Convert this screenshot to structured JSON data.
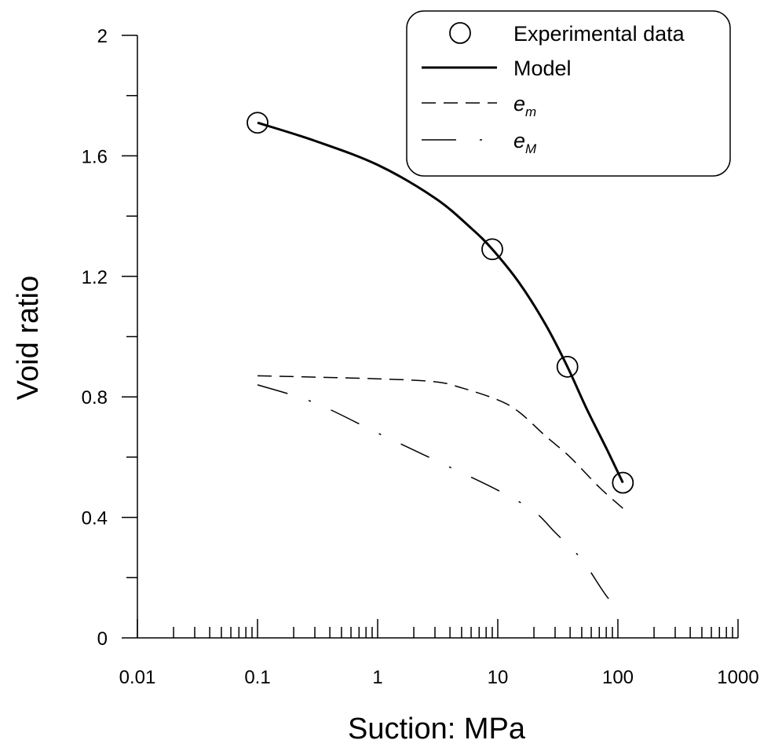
{
  "chart_data": {
    "type": "line",
    "xlabel": "Suction: MPa",
    "ylabel": "Void ratio",
    "x_scale": "log",
    "xlim": [
      0.01,
      1000
    ],
    "ylim": [
      0,
      2
    ],
    "x_ticks": [
      0.01,
      0.1,
      1,
      10,
      100,
      1000
    ],
    "x_tick_labels": [
      "0.01",
      "0.1",
      "1",
      "10",
      "100",
      "1000"
    ],
    "y_ticks": [
      0,
      0.4,
      0.8,
      1.2,
      1.6,
      2
    ],
    "y_tick_labels": [
      "0",
      "0.4",
      "0.8",
      "1.2",
      "1.6",
      "2"
    ],
    "y_minor_step": 0.2,
    "grid": false,
    "legend": {
      "placement": "top-right",
      "entries": [
        {
          "label": "Experimental data",
          "style": "circle-marker"
        },
        {
          "label": "Model",
          "style": "solid"
        },
        {
          "label": "e",
          "sub": "m",
          "style": "dashed"
        },
        {
          "label": "e",
          "sub": "M",
          "style": "dash-dot"
        }
      ]
    },
    "series": [
      {
        "name": "Experimental data",
        "style": "circle-marker",
        "x": [
          0.1,
          9,
          38,
          110
        ],
        "y": [
          1.71,
          1.29,
          0.9,
          0.515
        ]
      },
      {
        "name": "Model",
        "style": "solid",
        "x": [
          0.1,
          0.3,
          1,
          3,
          6,
          9,
          15,
          25,
          38,
          55,
          80,
          110
        ],
        "y": [
          1.71,
          1.65,
          1.57,
          1.46,
          1.36,
          1.29,
          1.18,
          1.04,
          0.9,
          0.76,
          0.63,
          0.515
        ]
      },
      {
        "name": "e_m",
        "style": "dashed",
        "x": [
          0.1,
          1,
          3,
          5,
          10,
          15,
          25,
          40,
          70,
          110
        ],
        "y": [
          0.87,
          0.86,
          0.85,
          0.83,
          0.79,
          0.75,
          0.67,
          0.6,
          0.5,
          0.43
        ]
      },
      {
        "name": "e_M",
        "style": "dash-dot",
        "x": [
          0.1,
          0.3,
          1,
          3,
          10,
          20,
          30,
          50,
          80,
          110
        ],
        "y": [
          0.84,
          0.78,
          0.68,
          0.59,
          0.49,
          0.42,
          0.35,
          0.26,
          0.14,
          0.08
        ]
      }
    ]
  }
}
